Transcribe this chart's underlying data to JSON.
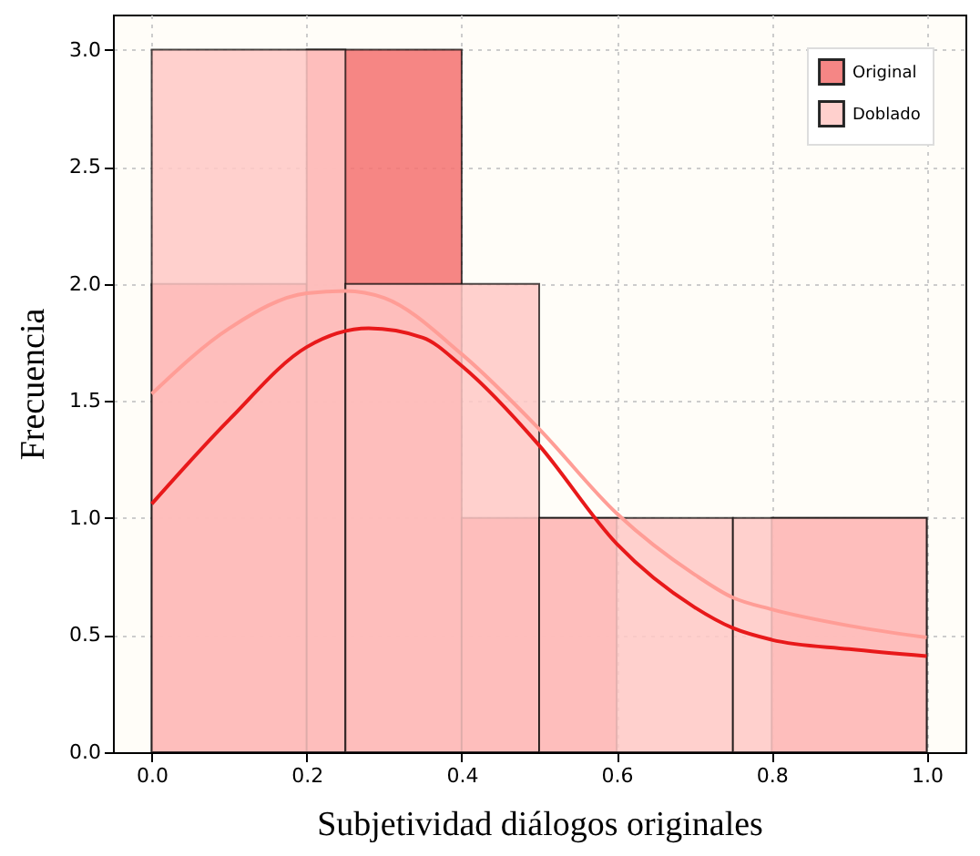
{
  "chart_data": {
    "type": "histogram",
    "xlabel": "Subjetividad diálogos originales",
    "ylabel": "Frecuencia",
    "legend": "top right",
    "grid": true,
    "xlim": [
      -0.05,
      1.05
    ],
    "ylim": [
      0,
      3.15
    ],
    "xticks": [
      {
        "value": 0,
        "label": "0.0"
      },
      0.2,
      0.4,
      0.6,
      0.8,
      {
        "value": 1,
        "label": "1.0"
      }
    ],
    "yticks": [
      {
        "value": 0,
        "label": "0.0"
      },
      0.5,
      {
        "value": 1,
        "label": "1.0"
      },
      1.5,
      {
        "value": 2,
        "label": "2.0"
      },
      2.5,
      {
        "value": 3,
        "label": "3.0"
      }
    ],
    "series": [
      {
        "name": "Original",
        "color": "#f47170",
        "bins": [
          0,
          0.2,
          0.4,
          0.6,
          0.8,
          1.0
        ],
        "values": [
          2,
          3,
          1,
          0,
          1
        ]
      },
      {
        "name": "Doblado",
        "color": "#ffc8c5",
        "bins": [
          0,
          0.25,
          0.5,
          0.75,
          1.0
        ],
        "values": [
          3,
          2,
          1,
          1
        ]
      },
      {
        "type": "line",
        "color": "#e8191a",
        "x": [
          0,
          0.1,
          0.2,
          0.28,
          0.35,
          0.4,
          0.5,
          0.6,
          0.7,
          0.75,
          0.8,
          0.9,
          1.0
        ],
        "values": [
          1.06,
          1.42,
          1.73,
          1.81,
          1.77,
          1.65,
          1.31,
          0.89,
          0.62,
          0.53,
          0.48,
          0.44,
          0.41
        ]
      },
      {
        "type": "line",
        "color": "#ff9d96",
        "x": [
          0,
          0.1,
          0.2,
          0.25,
          0.3,
          0.4,
          0.5,
          0.6,
          0.7,
          0.75,
          0.8,
          0.9,
          1.0
        ],
        "values": [
          1.53,
          1.81,
          1.96,
          1.97,
          1.94,
          1.7,
          1.38,
          1.02,
          0.76,
          0.66,
          0.61,
          0.54,
          0.49
        ]
      }
    ]
  }
}
